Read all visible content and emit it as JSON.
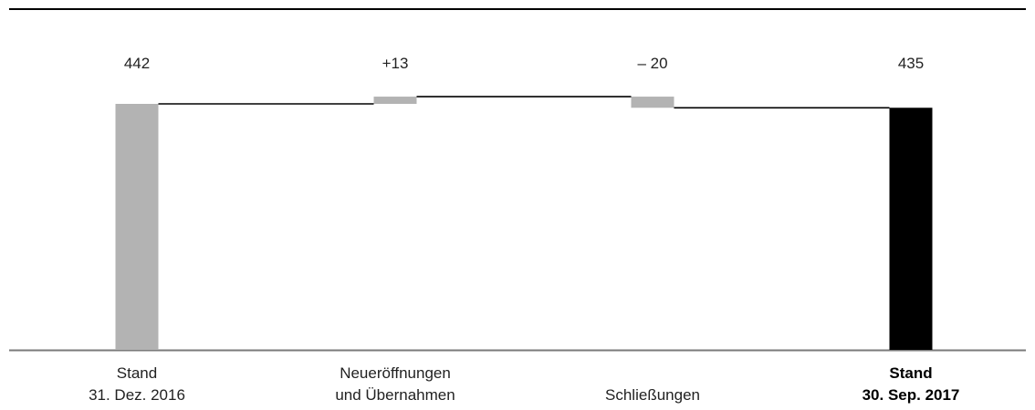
{
  "chart_data": {
    "type": "bar",
    "subtype": "waterfall",
    "categories": [
      {
        "line1": "Stand",
        "line2": "31. Dez. 2016",
        "bold": false
      },
      {
        "line1": "Neueröffnungen",
        "line2": "und Übernahmen",
        "bold": false
      },
      {
        "line1": "",
        "line2": "Schließungen",
        "bold": false
      },
      {
        "line1": "Stand",
        "line2": "30. Sep. 2017",
        "bold": true
      }
    ],
    "steps": [
      {
        "kind": "total",
        "value": 442,
        "label": "442"
      },
      {
        "kind": "delta",
        "value": 13,
        "label": "+13"
      },
      {
        "kind": "delta",
        "value": -20,
        "label": "– 20"
      },
      {
        "kind": "total",
        "value": 435,
        "label": "435"
      }
    ],
    "ylim": [
      0,
      500
    ],
    "grid": false,
    "colors": {
      "step_bar": "#b3b3b3",
      "final_total": "#000000",
      "connector": "#000000",
      "axis": "#7a7a7a",
      "top_rule": "#000000"
    }
  }
}
